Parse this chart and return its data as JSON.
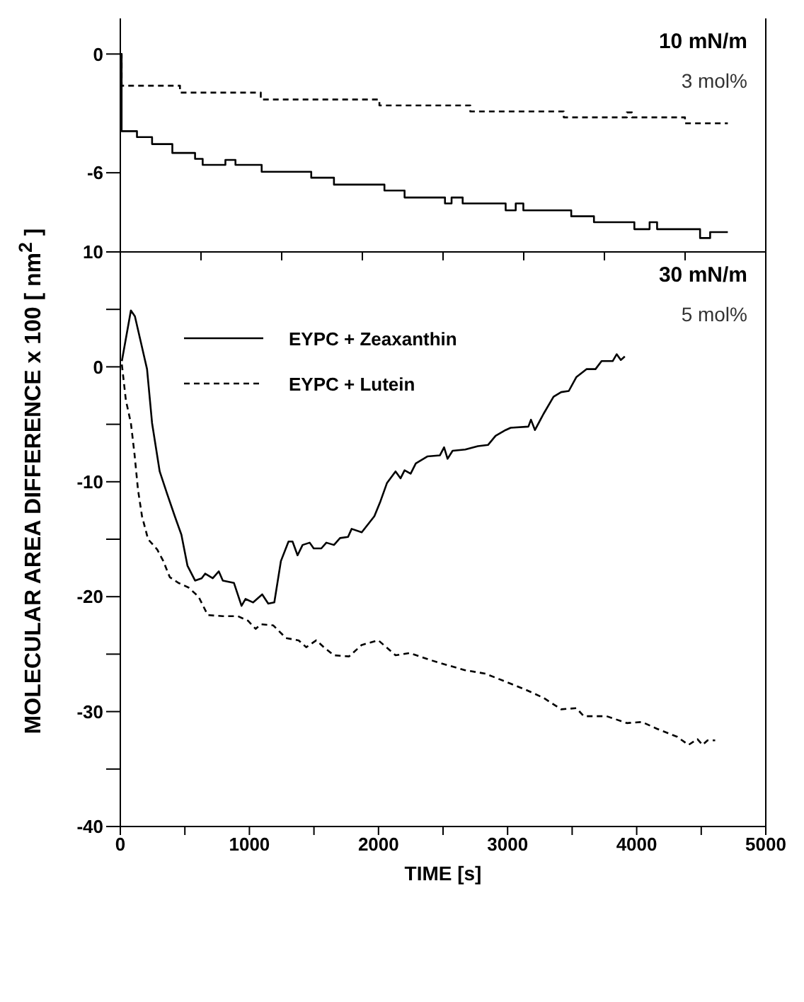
{
  "chart_data": [
    {
      "type": "step",
      "annotations": [
        "10 mN/m",
        "3 mol%"
      ],
      "xlim": [
        0,
        5000
      ],
      "xticks": [
        {
          "value": 0,
          "label": null
        },
        {
          "value": 625,
          "label": null
        },
        {
          "value": 1250,
          "label": null
        },
        {
          "value": 1875,
          "label": null
        },
        {
          "value": 2500,
          "label": null
        },
        {
          "value": 3125,
          "label": null
        },
        {
          "value": 3750,
          "label": null
        },
        {
          "value": 4375,
          "label": null
        },
        {
          "value": 5000,
          "label": null
        }
      ],
      "ylim": [
        -10,
        1.8
      ],
      "yticks": [
        0,
        -6,
        {
          "value": -10,
          "label": "10"
        }
      ],
      "tick_labels": "y",
      "legend": false,
      "series": [
        {
          "color": "#000000",
          "line_style": "solid",
          "x": [
            0,
            10,
            129,
            246,
            403,
            579,
            638,
            814,
            892,
            1095,
            1479,
            1655,
            2046,
            2202,
            2515,
            2566,
            2652,
            2985,
            3063,
            3122,
            3493,
            3669,
            3982,
            4100,
            4158,
            4491,
            4569,
            4706
          ],
          "values": [
            0,
            -3.9,
            -4.2,
            -4.55,
            -5.0,
            -5.3,
            -5.6,
            -5.35,
            -5.6,
            -5.95,
            -6.25,
            -6.6,
            -6.9,
            -7.25,
            -7.55,
            -7.25,
            -7.55,
            -7.9,
            -7.55,
            -7.9,
            -8.2,
            -8.5,
            -8.85,
            -8.5,
            -8.85,
            -9.3,
            -9.0,
            -9.0
          ]
        },
        {
          "color": "#000000",
          "line_style": "dashed",
          "x": [
            0,
            10,
            462,
            1088,
            2007,
            2711,
            3435,
            3924,
            3963,
            4374,
            4706
          ],
          "values": [
            0,
            -1.6,
            -1.95,
            -2.3,
            -2.6,
            -2.9,
            -3.2,
            -2.95,
            -3.2,
            -3.5,
            -3.5
          ]
        }
      ]
    },
    {
      "type": "line",
      "xlabel": "TIME  [s]",
      "ylabel": "MOLECULAR AREA DIFFERENCE  x 100  [ nm$^{2}$ ]",
      "annotations": [
        "30 mN/m",
        "5 mol%"
      ],
      "xlim": [
        0,
        5000
      ],
      "xticks": [
        0,
        {
          "value": 500,
          "label": null
        },
        1000,
        {
          "value": 1500,
          "label": null
        },
        2000,
        {
          "value": 2500,
          "label": null
        },
        3000,
        {
          "value": 3500,
          "label": null
        },
        4000,
        {
          "value": 4500,
          "label": null
        },
        5000
      ],
      "ylim": [
        -40,
        10
      ],
      "yticks": [
        -40,
        {
          "value": -35,
          "label": null
        },
        -30,
        {
          "value": -25,
          "label": null
        },
        -20,
        {
          "value": -15,
          "label": null
        },
        -10,
        {
          "value": -5,
          "label": null
        },
        0,
        {
          "value": 5,
          "label": null
        }
      ],
      "legend": "top left",
      "series": [
        {
          "name": "EYPC  +  Zeaxanthin",
          "color": "#000000",
          "line_style": "solid",
          "x": [
            12,
            82,
            113,
            160,
            207,
            246,
            305,
            364,
            422,
            473,
            520,
            579,
            630,
            657,
            716,
            763,
            794,
            880,
            939,
            970,
            1029,
            1099,
            1146,
            1193,
            1244,
            1303,
            1334,
            1373,
            1412,
            1467,
            1498,
            1557,
            1596,
            1655,
            1702,
            1764,
            1792,
            1870,
            1968,
            2015,
            2066,
            2132,
            2171,
            2202,
            2249,
            2289,
            2378,
            2476,
            2508,
            2535,
            2574,
            2672,
            2770,
            2848,
            2907,
            2985,
            3024,
            3161,
            3181,
            3212,
            3278,
            3356,
            3415,
            3474,
            3532,
            3611,
            3681,
            3728,
            3814,
            3845,
            3877,
            3908
          ],
          "values": [
            0.5,
            4.9,
            4.4,
            2.1,
            -0.2,
            -4.9,
            -9.1,
            -11.1,
            -13.0,
            -14.6,
            -17.3,
            -18.6,
            -18.4,
            -18.0,
            -18.4,
            -17.8,
            -18.6,
            -18.8,
            -20.8,
            -20.2,
            -20.5,
            -19.8,
            -20.6,
            -20.5,
            -16.9,
            -15.2,
            -15.2,
            -16.4,
            -15.5,
            -15.3,
            -15.8,
            -15.8,
            -15.3,
            -15.5,
            -14.9,
            -14.8,
            -14.1,
            -14.4,
            -13.0,
            -11.7,
            -10.1,
            -9.1,
            -9.7,
            -9.0,
            -9.3,
            -8.4,
            -7.8,
            -7.7,
            -7.0,
            -8.0,
            -7.3,
            -7.2,
            -6.9,
            -6.8,
            -6.0,
            -5.5,
            -5.3,
            -5.2,
            -4.6,
            -5.5,
            -4.1,
            -2.6,
            -2.2,
            -2.1,
            -0.9,
            -0.2,
            -0.2,
            0.5,
            0.5,
            1.1,
            0.6,
            0.9
          ]
        },
        {
          "name": "EYPC  +  Lutein",
          "color": "#000000",
          "line_style": "dashed",
          "x": [
            12,
            43,
            82,
            110,
            137,
            168,
            215,
            286,
            333,
            383,
            450,
            528,
            606,
            677,
            794,
            911,
            990,
            1048,
            1088,
            1185,
            1283,
            1381,
            1440,
            1518,
            1577,
            1655,
            1772,
            1870,
            1999,
            2132,
            2242,
            2398,
            2515,
            2672,
            2828,
            2985,
            3141,
            3278,
            3415,
            3532,
            3591,
            3767,
            3924,
            4041,
            4158,
            4315,
            4401,
            4471,
            4510,
            4549,
            4608
          ],
          "values": [
            0.2,
            -2.9,
            -4.9,
            -7.6,
            -10.7,
            -13.0,
            -15.0,
            -15.9,
            -16.9,
            -18.3,
            -18.8,
            -19.2,
            -20.0,
            -21.6,
            -21.7,
            -21.7,
            -22.1,
            -22.8,
            -22.4,
            -22.5,
            -23.6,
            -23.8,
            -24.4,
            -23.8,
            -24.4,
            -25.1,
            -25.2,
            -24.2,
            -23.8,
            -25.1,
            -24.9,
            -25.5,
            -25.9,
            -26.4,
            -26.7,
            -27.4,
            -28.1,
            -28.8,
            -29.8,
            -29.7,
            -30.4,
            -30.4,
            -31.0,
            -30.9,
            -31.5,
            -32.2,
            -32.9,
            -32.4,
            -32.9,
            -32.5,
            -32.5
          ]
        }
      ]
    }
  ]
}
